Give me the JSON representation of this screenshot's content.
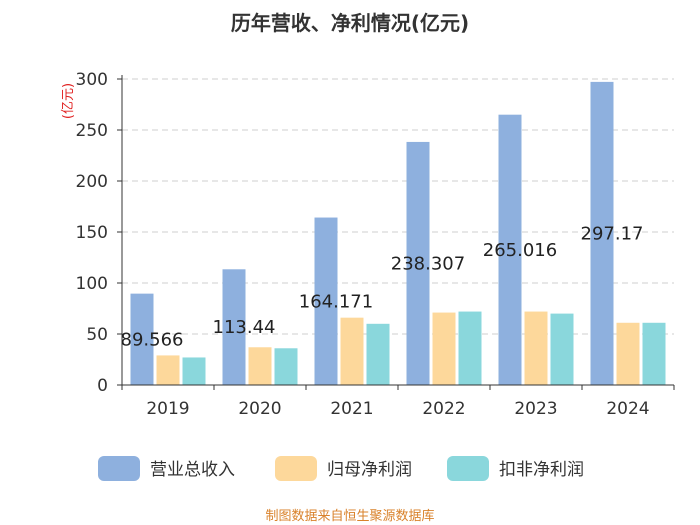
{
  "chart_data": {
    "type": "bar",
    "title": "历年营收、净利情况(亿元)",
    "ylabel": "(亿元)",
    "xlabel": "",
    "ylim": [
      0,
      300
    ],
    "yticks": [
      0,
      50,
      100,
      150,
      200,
      250,
      300
    ],
    "grid": "horizontal-dashed",
    "legend_position": "bottom",
    "categories": [
      "2019",
      "2020",
      "2021",
      "2022",
      "2023",
      "2024"
    ],
    "series": [
      {
        "name": "营业总收入",
        "color": "#8EB0DE",
        "values": [
          89.566,
          113.44,
          164.171,
          238.307,
          265.016,
          297.17
        ]
      },
      {
        "name": "归母净利润",
        "color": "#FDD89B",
        "values": [
          29,
          37,
          66,
          71,
          72,
          61
        ]
      },
      {
        "name": "扣非净利润",
        "color": "#8AD7DC",
        "values": [
          27,
          36,
          60,
          72,
          70,
          61
        ]
      }
    ],
    "data_labels": [
      "89.566",
      "113.44",
      "164.171",
      "238.307",
      "265.016",
      "297.17"
    ]
  },
  "colors": {
    "ylabel": "#E02020",
    "footer": "#D9822B",
    "grid": "#CFCFCF",
    "axis": "#333333"
  },
  "footer": {
    "text": "制图数据来自恒生聚源数据库"
  }
}
